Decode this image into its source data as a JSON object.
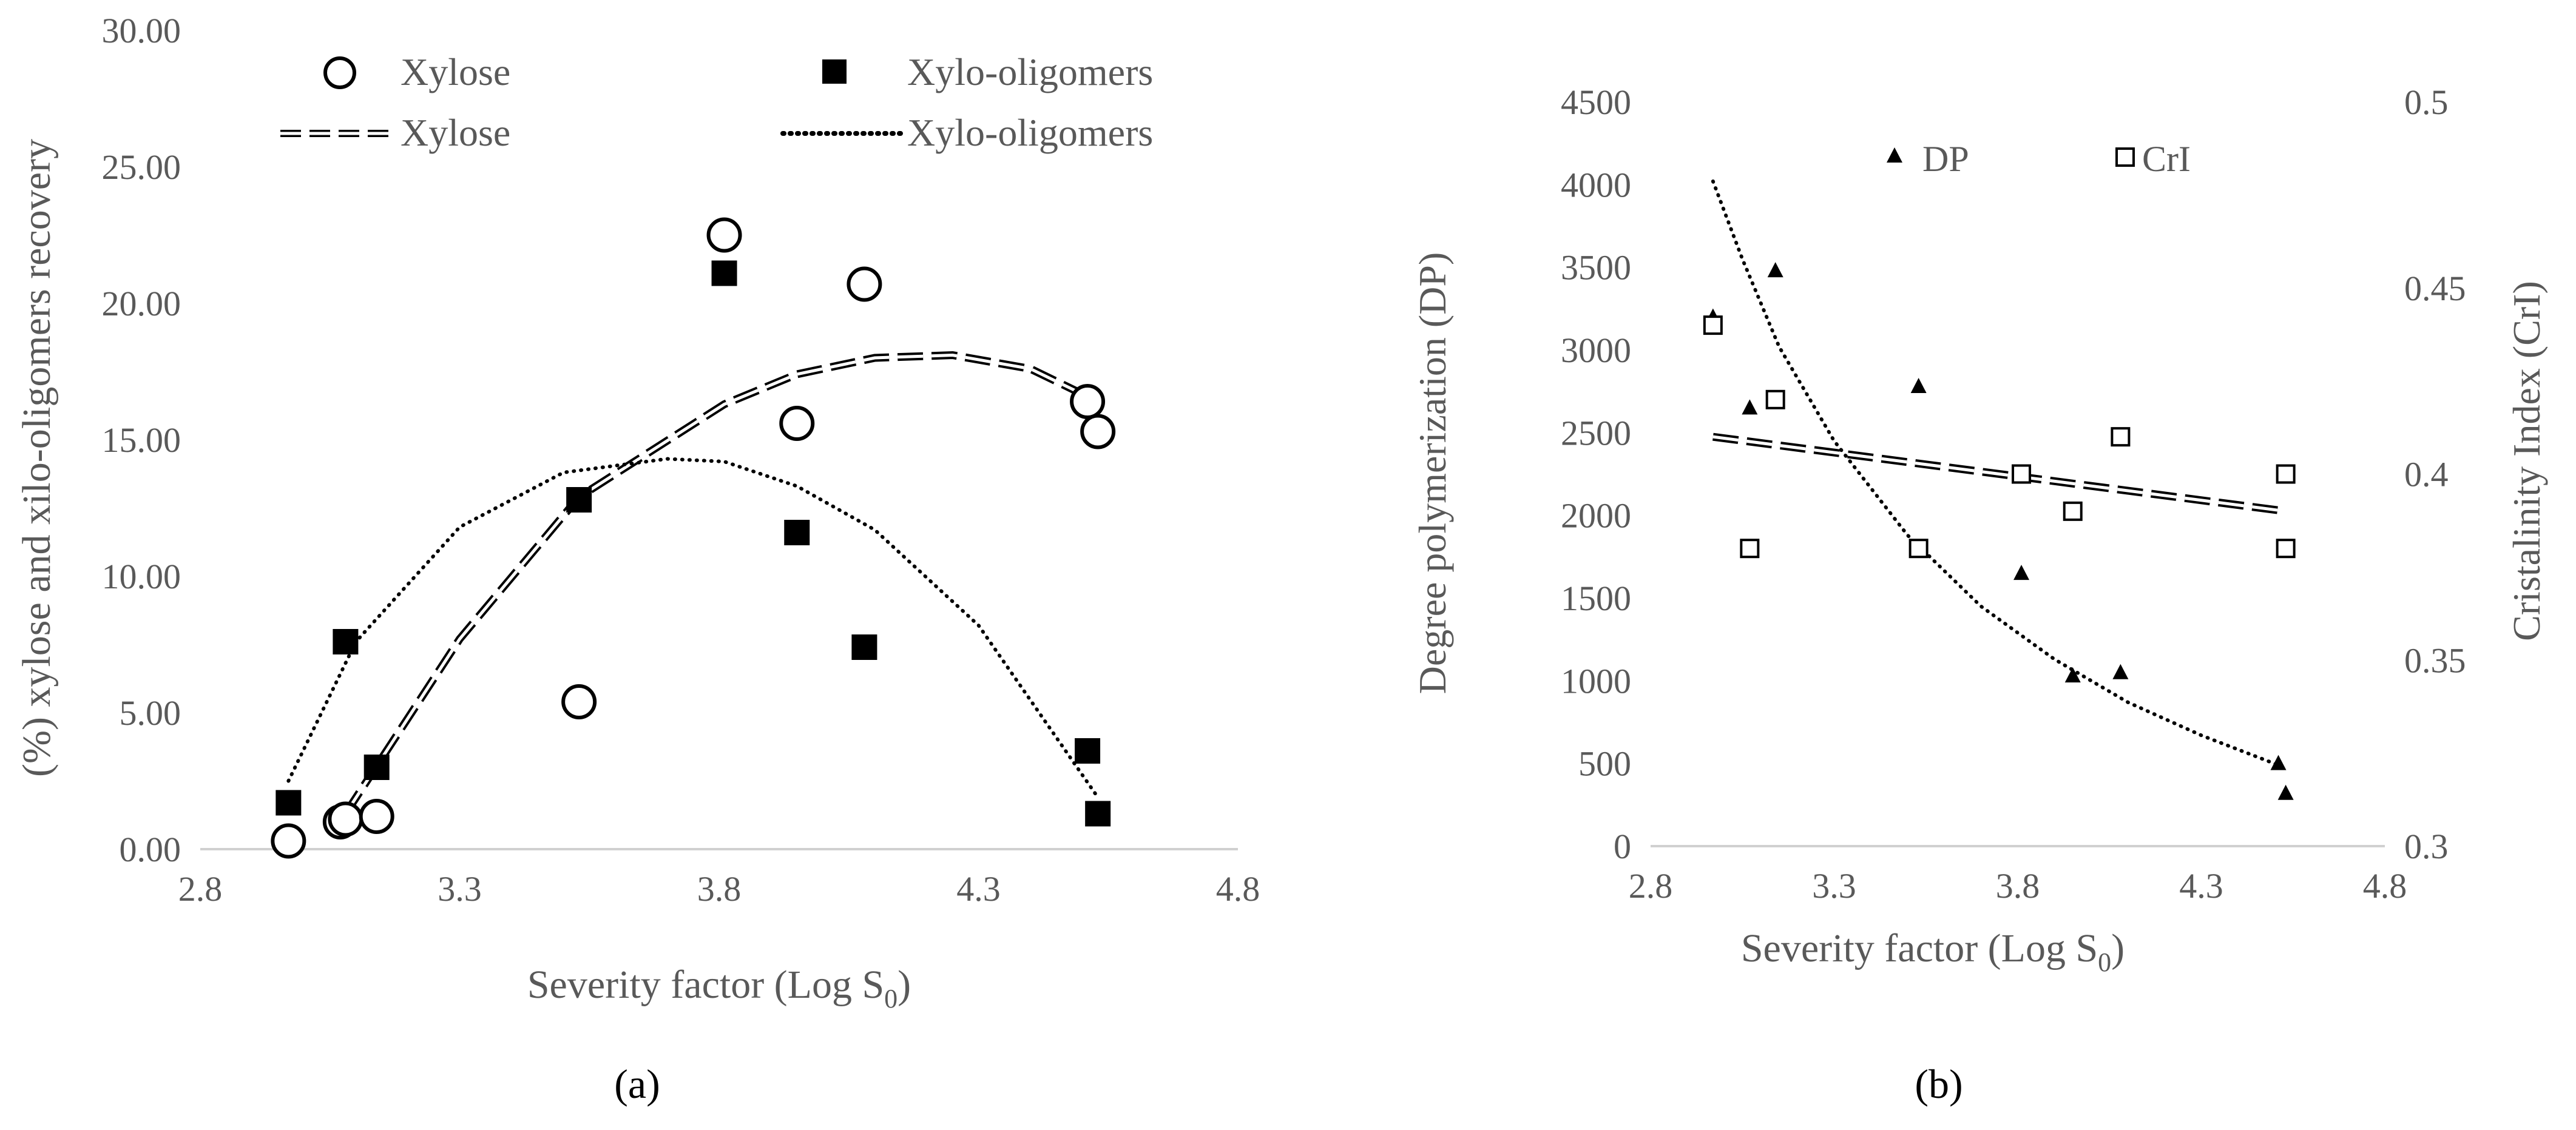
{
  "chart_data": [
    {
      "type": "scatter",
      "panel_label": "(a)",
      "xlabel": "Severity factor (Log S",
      "xlabel_sub": "0",
      "xlabel_end": ")",
      "ylabel": "(%) xylose and xilo-oligomers recovery",
      "xlim": [
        2.8,
        4.8
      ],
      "ylim": [
        0,
        30
      ],
      "xticks": [
        "2.8",
        "3.3",
        "3.8",
        "4.3",
        "4.8"
      ],
      "yticks": [
        "0.00",
        "5.00",
        "10.00",
        "15.00",
        "20.00",
        "25.00",
        "30.00"
      ],
      "grid": false,
      "legend": {
        "position": "top",
        "markers": [
          "Xylose",
          "Xylo-oligomers"
        ],
        "trendlines": [
          "Xylose",
          "Xylo-oligomers"
        ]
      },
      "series": [
        {
          "name": "Xylose",
          "marker": "open-circle",
          "x": [
            2.97,
            3.07,
            3.08,
            3.14,
            3.53,
            3.81,
            3.95,
            4.08,
            4.51,
            4.53
          ],
          "y": [
            0.3,
            1.0,
            1.1,
            1.2,
            5.4,
            22.5,
            15.6,
            20.7,
            16.4,
            15.3
          ]
        },
        {
          "name": "Xylo-oligomers",
          "marker": "filled-square",
          "x": [
            2.97,
            3.08,
            3.14,
            3.53,
            3.81,
            3.95,
            4.08,
            4.51,
            4.53
          ],
          "y": [
            1.7,
            7.6,
            3.0,
            12.8,
            21.1,
            11.6,
            7.4,
            3.6,
            1.3
          ]
        }
      ],
      "trendlines": [
        {
          "name": "Xylose",
          "style": "double-dashed",
          "x": [
            3.08,
            3.3,
            3.53,
            3.81,
            3.95,
            4.1,
            4.25,
            4.4,
            4.53
          ],
          "y": [
            1.3,
            7.7,
            12.9,
            16.3,
            17.4,
            18.0,
            18.1,
            17.6,
            16.4
          ]
        },
        {
          "name": "Xylo-oligomers",
          "style": "dotted",
          "x": [
            2.97,
            3.1,
            3.3,
            3.5,
            3.7,
            3.81,
            3.95,
            4.1,
            4.3,
            4.53
          ],
          "y": [
            2.5,
            7.6,
            11.8,
            13.8,
            14.3,
            14.2,
            13.3,
            11.7,
            8.2,
            1.9
          ]
        }
      ]
    },
    {
      "type": "scatter",
      "panel_label": "(b)",
      "xlabel": "Severity factor (Log S",
      "xlabel_sub": "0",
      "xlabel_end": ")",
      "ylabel": "Degree polymerization (DP)",
      "y2label": "Cristalinity Index (CrI)",
      "xlim": [
        2.8,
        4.8
      ],
      "ylim": [
        0,
        4500
      ],
      "y2lim": [
        0.3,
        0.5
      ],
      "xticks": [
        "2.8",
        "3.3",
        "3.8",
        "4.3",
        "4.8"
      ],
      "yticks": [
        "0",
        "500",
        "1000",
        "1500",
        "2000",
        "2500",
        "3000",
        "3500",
        "4000",
        "4500"
      ],
      "y2ticks": [
        "0.3",
        "0.35",
        "0.4",
        "0.45",
        "0.5"
      ],
      "grid": false,
      "legend": {
        "position": "top",
        "markers": [
          "DP",
          "CrI"
        ]
      },
      "series": [
        {
          "name": "DP",
          "axis": "left",
          "marker": "filled-triangle",
          "x": [
            2.97,
            3.07,
            3.14,
            3.53,
            3.81,
            3.95,
            4.08,
            4.51,
            4.53
          ],
          "y": [
            3200,
            2650,
            3480,
            2780,
            1650,
            1030,
            1050,
            500,
            320
          ]
        },
        {
          "name": "CrI",
          "axis": "right",
          "marker": "open-square",
          "x": [
            2.97,
            3.07,
            3.14,
            3.53,
            3.81,
            3.95,
            4.08,
            4.53,
            4.53
          ],
          "y": [
            0.44,
            0.38,
            0.42,
            0.38,
            0.4,
            0.39,
            0.41,
            0.4,
            0.38
          ]
        }
      ],
      "trendlines": [
        {
          "name": "DP",
          "axis": "left",
          "style": "dotted",
          "x": [
            2.97,
            3.05,
            3.15,
            3.3,
            3.5,
            3.7,
            3.9,
            4.1,
            4.3,
            4.51
          ],
          "y": [
            4020,
            3550,
            3020,
            2450,
            1880,
            1450,
            1130,
            870,
            670,
            490
          ]
        },
        {
          "name": "CrI",
          "axis": "right",
          "style": "double-dashed",
          "x": [
            2.97,
            4.53
          ],
          "y": [
            0.41,
            0.39
          ]
        }
      ]
    }
  ]
}
